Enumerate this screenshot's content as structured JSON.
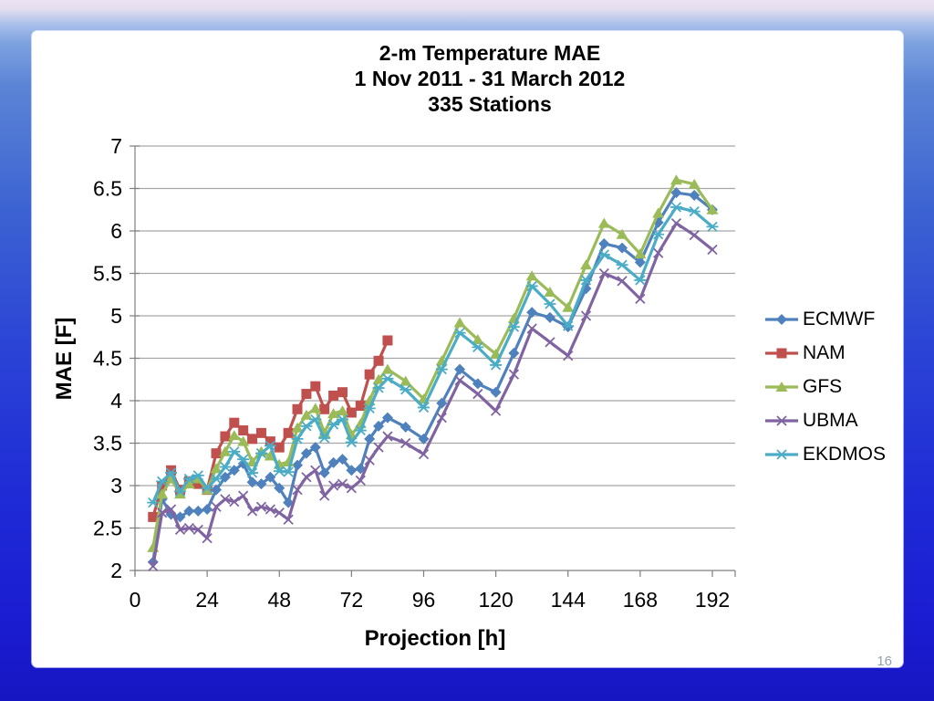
{
  "slide": {
    "page_number": "16"
  },
  "chart_data": {
    "type": "line",
    "title_lines": [
      "2-m Temperature MAE",
      "1 Nov 2011 - 31 March 2012",
      "335 Stations"
    ],
    "xlabel": "Projection [h]",
    "ylabel": "MAE [F]",
    "xlim": [
      0,
      198
    ],
    "ylim": [
      2,
      7
    ],
    "x_ticks": [
      0,
      24,
      48,
      72,
      96,
      120,
      144,
      168,
      192
    ],
    "y_tick_step": 0.5,
    "grid": "horizontal",
    "legend_position": "right",
    "x": [
      6,
      9,
      12,
      15,
      18,
      21,
      24,
      27,
      30,
      33,
      36,
      39,
      42,
      45,
      48,
      51,
      54,
      57,
      60,
      63,
      66,
      69,
      72,
      75,
      78,
      81,
      84,
      90,
      96,
      102,
      108,
      114,
      120,
      126,
      132,
      138,
      144,
      150,
      156,
      162,
      168,
      174,
      180,
      186,
      192
    ],
    "series": [
      {
        "name": "ECMWF",
        "color": "#4F81BD",
        "marker": "diamond",
        "values": [
          2.1,
          2.84,
          2.66,
          2.63,
          2.7,
          2.7,
          2.72,
          2.95,
          3.1,
          3.18,
          3.26,
          3.04,
          3.02,
          3.1,
          2.97,
          2.8,
          3.24,
          3.38,
          3.45,
          3.15,
          3.27,
          3.31,
          3.18,
          3.2,
          3.55,
          3.7,
          3.8,
          3.69,
          3.55,
          3.97,
          4.37,
          4.2,
          4.1,
          4.56,
          5.04,
          4.98,
          4.87,
          5.32,
          5.85,
          5.8,
          5.63,
          6.1,
          6.45,
          6.42,
          6.25
        ]
      },
      {
        "name": "NAM",
        "color": "#C0504D",
        "marker": "square",
        "x": [
          6,
          9,
          12,
          15,
          18,
          21,
          24,
          27,
          30,
          33,
          36,
          39,
          42,
          45,
          48,
          51,
          54,
          57,
          60,
          63,
          66,
          69,
          72,
          75,
          78,
          81,
          84
        ],
        "values": [
          2.63,
          3.0,
          3.18,
          2.95,
          3.05,
          3.02,
          2.95,
          3.38,
          3.58,
          3.74,
          3.65,
          3.55,
          3.62,
          3.52,
          3.45,
          3.62,
          3.9,
          4.08,
          4.17,
          3.9,
          4.06,
          4.1,
          3.86,
          3.94,
          4.31,
          4.47,
          4.71
        ]
      },
      {
        "name": "GFS",
        "color": "#9BBB59",
        "marker": "triangle",
        "values": [
          2.27,
          2.9,
          3.08,
          2.9,
          3.02,
          3.08,
          2.95,
          3.2,
          3.4,
          3.59,
          3.52,
          3.28,
          3.4,
          3.35,
          3.25,
          3.28,
          3.68,
          3.83,
          3.91,
          3.62,
          3.85,
          3.88,
          3.6,
          3.73,
          4.0,
          4.25,
          4.37,
          4.23,
          4.02,
          4.47,
          4.92,
          4.72,
          4.55,
          4.97,
          5.47,
          5.28,
          5.1,
          5.6,
          6.09,
          5.96,
          5.73,
          6.21,
          6.6,
          6.55,
          6.25
        ]
      },
      {
        "name": "UBMA",
        "color": "#8064A2",
        "marker": "x",
        "values": [
          2.05,
          2.68,
          2.72,
          2.48,
          2.5,
          2.48,
          2.38,
          2.75,
          2.84,
          2.81,
          2.88,
          2.7,
          2.75,
          2.72,
          2.68,
          2.6,
          2.95,
          3.1,
          3.18,
          2.88,
          3.0,
          3.02,
          2.97,
          3.06,
          3.3,
          3.45,
          3.58,
          3.5,
          3.37,
          3.8,
          4.24,
          4.08,
          3.88,
          4.31,
          4.85,
          4.69,
          4.53,
          5.0,
          5.5,
          5.41,
          5.2,
          5.74,
          6.09,
          5.95,
          5.78
        ]
      },
      {
        "name": "EKDMOS",
        "color": "#4BACC6",
        "marker": "star",
        "values": [
          2.8,
          3.05,
          3.15,
          2.93,
          3.08,
          3.12,
          2.97,
          3.08,
          3.22,
          3.4,
          3.31,
          3.15,
          3.38,
          3.47,
          3.17,
          3.16,
          3.55,
          3.7,
          3.78,
          3.56,
          3.72,
          3.78,
          3.51,
          3.65,
          3.91,
          4.15,
          4.26,
          4.13,
          3.92,
          4.37,
          4.8,
          4.63,
          4.42,
          4.87,
          5.35,
          5.14,
          4.88,
          5.42,
          5.72,
          5.6,
          5.42,
          5.96,
          6.28,
          6.23,
          6.05
        ]
      }
    ]
  }
}
